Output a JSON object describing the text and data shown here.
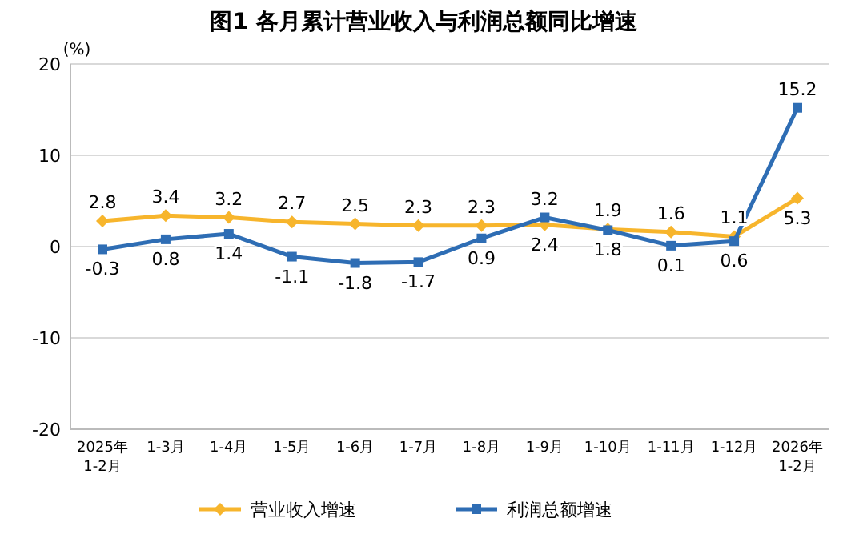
{
  "chart_data": {
    "type": "line",
    "title": "图1  各月累计营业收入与利润总额同比增速",
    "ylabel": "(%)",
    "categories": [
      "2025年\n1-2月",
      "1-3月",
      "1-4月",
      "1-5月",
      "1-6月",
      "1-7月",
      "1-8月",
      "1-9月",
      "1-10月",
      "1-11月",
      "1-12月",
      "2026年\n1-2月"
    ],
    "series": [
      {
        "name": "营业收入增速",
        "color": "#f7b52c",
        "marker": "diamond",
        "values": [
          2.8,
          3.4,
          3.2,
          2.7,
          2.5,
          2.3,
          2.3,
          2.4,
          1.9,
          1.6,
          1.1,
          5.3
        ]
      },
      {
        "name": "利润总额增速",
        "color": "#2e6db4",
        "marker": "square",
        "values": [
          -0.3,
          0.8,
          1.4,
          -1.1,
          -1.8,
          -1.7,
          0.9,
          3.2,
          1.8,
          0.1,
          0.6,
          15.2
        ]
      }
    ],
    "ylim": [
      -20,
      20
    ],
    "yticks": [
      -20,
      -10,
      0,
      10,
      20
    ],
    "grid": "y",
    "legend": "bottom",
    "data_labels": true,
    "line_style": "solid"
  }
}
